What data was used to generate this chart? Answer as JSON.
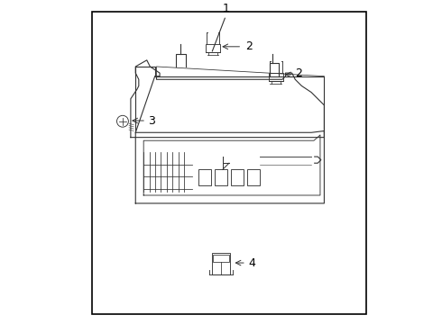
{
  "background_color": "#ffffff",
  "border_color": "#000000",
  "line_color": "#333333",
  "label_color": "#000000",
  "fig_width": 4.9,
  "fig_height": 3.6,
  "dpi": 100,
  "border": [
    0.1,
    0.03,
    0.95,
    0.97
  ]
}
